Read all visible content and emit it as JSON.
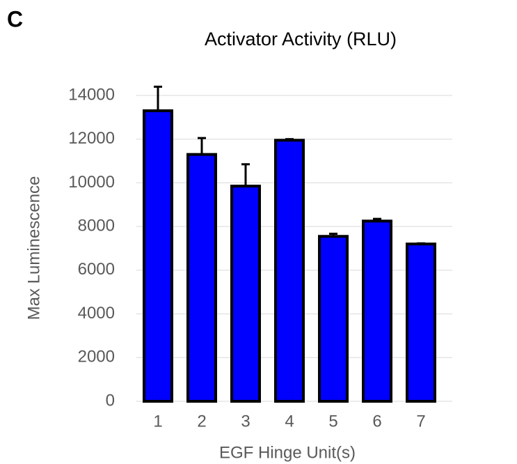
{
  "panel_label": "C",
  "chart_data": {
    "type": "bar",
    "title": "Activator Activity (RLU)",
    "x_label": "EGF Hinge Unit(s)",
    "y_label": "Max Luminescence",
    "categories": [
      "1",
      "2",
      "3",
      "4",
      "5",
      "6",
      "7"
    ],
    "values": [
      13300,
      11300,
      9850,
      11950,
      7550,
      8250,
      7200
    ],
    "errors": [
      1100,
      750,
      1000,
      50,
      120,
      100,
      30
    ],
    "color": "#0000ff",
    "ylim": [
      0,
      14000
    ],
    "yticks": [
      0,
      2000,
      4000,
      6000,
      8000,
      10000,
      12000,
      14000
    ],
    "grid": true
  }
}
